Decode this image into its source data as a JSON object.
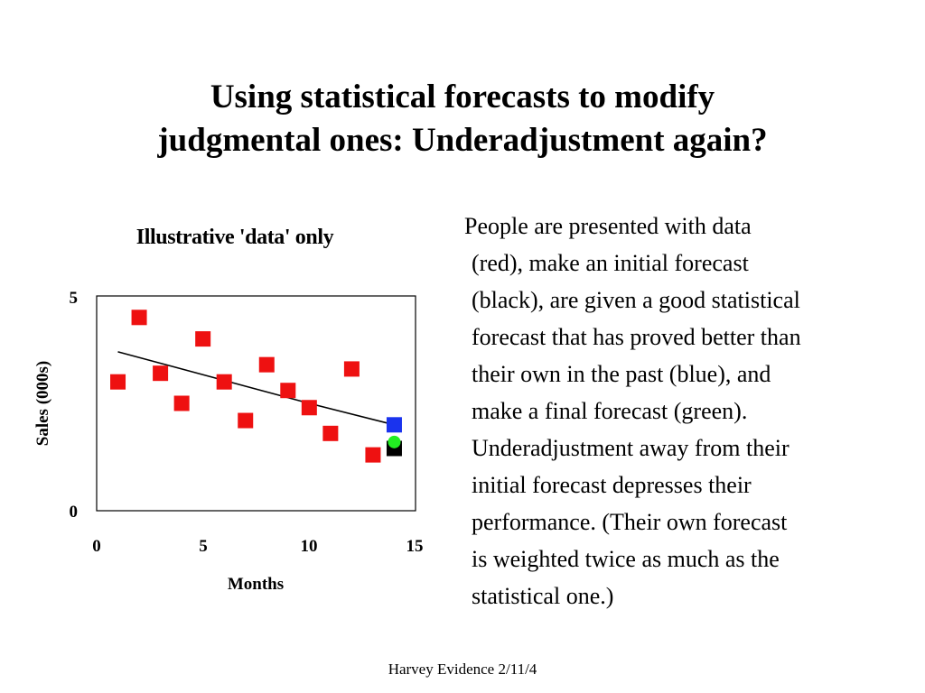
{
  "slide": {
    "title_lines": [
      "Using statistical forecasts to modify",
      "judgmental ones: Underadjustment again?"
    ],
    "body_lines": [
      "People are presented with data",
      "(red), make an initial forecast",
      "(black), are given a good statistical",
      "forecast that has proved better than",
      "their own in the past (blue), and",
      "make a final forecast (green).",
      "Underadjustment away from their",
      "initial forecast depresses their",
      "performance. (Their own forecast",
      "is weighted twice as much as the",
      "statistical one.)"
    ],
    "footer": "Harvey Evidence 2/11/4"
  },
  "chart_data": {
    "type": "scatter",
    "title": "Illustrative 'data' only",
    "xlabel": "Months",
    "ylabel": "Sales (000s)",
    "xlim": [
      0,
      15
    ],
    "ylim": [
      0,
      5
    ],
    "x_ticks": [
      "0",
      "5",
      "10",
      "15"
    ],
    "y_ticks": [
      "0",
      "5"
    ],
    "grid": false,
    "series": [
      {
        "color": "#ee1111",
        "marker": "square",
        "points": [
          {
            "x": 1,
            "y": 3.0
          },
          {
            "x": 2,
            "y": 4.5
          },
          {
            "x": 3,
            "y": 3.2
          },
          {
            "x": 4,
            "y": 2.5
          },
          {
            "x": 5,
            "y": 4.0
          },
          {
            "x": 6,
            "y": 3.0
          },
          {
            "x": 7,
            "y": 2.1
          },
          {
            "x": 8,
            "y": 3.4
          },
          {
            "x": 9,
            "y": 2.8
          },
          {
            "x": 10,
            "y": 2.4
          },
          {
            "x": 11,
            "y": 1.8
          },
          {
            "x": 12,
            "y": 3.3
          },
          {
            "x": 13,
            "y": 1.3
          }
        ]
      },
      {
        "color": "#000000",
        "marker": "square",
        "points": [
          {
            "x": 14,
            "y": 1.45
          }
        ]
      },
      {
        "color": "#1a33ee",
        "marker": "square",
        "points": [
          {
            "x": 14,
            "y": 2.0
          }
        ]
      },
      {
        "color": "#22ee22",
        "marker": "circle",
        "points": [
          {
            "x": 14,
            "y": 1.6
          }
        ]
      }
    ],
    "trend_line": {
      "color": "#000000",
      "points": [
        {
          "x": 1,
          "y": 3.7
        },
        {
          "x": 4,
          "y": 3.3
        },
        {
          "x": 7,
          "y": 2.9
        },
        {
          "x": 10,
          "y": 2.5
        },
        {
          "x": 14,
          "y": 2.0
        }
      ]
    }
  }
}
